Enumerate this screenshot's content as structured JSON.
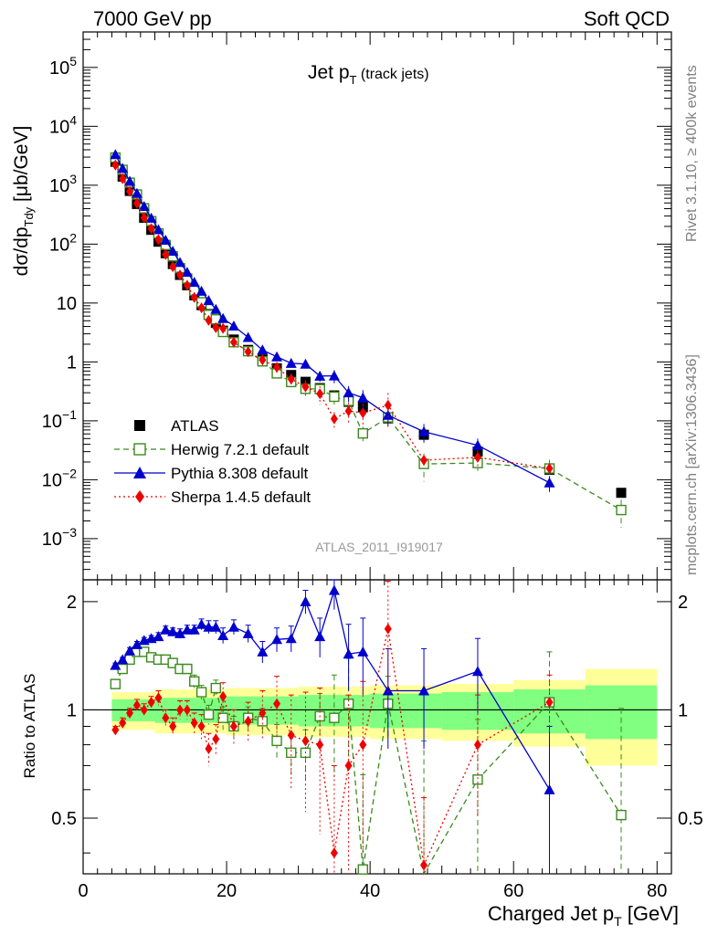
{
  "header": {
    "left": "7000 GeV pp",
    "right": "Soft QCD"
  },
  "title": {
    "main": "Jet p",
    "sub": "T",
    "extra": " (track jets)"
  },
  "side_labels": {
    "rivet": "Rivet 3.1.10, ≥ 400k events",
    "mcplots": "mcplots.cern.ch [arXiv:1306.3436]"
  },
  "watermark": "ATLAS_2011_I919017",
  "chart_data": {
    "type": "scatter",
    "title": "Jet pT (track jets)",
    "xlabel": "Charged Jet p_T [GeV]",
    "ylabel_main": "dσ/dp_Tdy [μb/GeV]",
    "ylabel_ratio": "Ratio to ATLAS",
    "xlim": [
      0,
      82
    ],
    "ylim_main": [
      0.0002,
      400000
    ],
    "ylim_ratio": [
      0.35,
      2.3
    ],
    "x_ticks": [
      0,
      20,
      40,
      60,
      80
    ],
    "main_y_ticks": [
      {
        "value": 0.001,
        "base": "10",
        "exp": "−3"
      },
      {
        "value": 0.01,
        "base": "10",
        "exp": "−2"
      },
      {
        "value": 0.1,
        "base": "10",
        "exp": "−1"
      },
      {
        "value": 1,
        "base": "1",
        "exp": ""
      },
      {
        "value": 10,
        "base": "10",
        "exp": ""
      },
      {
        "value": 100,
        "base": "10",
        "exp": "2"
      },
      {
        "value": 1000,
        "base": "10",
        "exp": "3"
      },
      {
        "value": 10000,
        "base": "10",
        "exp": "4"
      },
      {
        "value": 100000,
        "base": "10",
        "exp": "5"
      }
    ],
    "ratio_y_ticks": [
      {
        "value": 0.5,
        "label": "0.5"
      },
      {
        "value": 1,
        "label": "1"
      },
      {
        "value": 2,
        "label": "2"
      }
    ],
    "legend": [
      {
        "label": "ATLAS",
        "color": "#000000",
        "marker": "square",
        "line": "none"
      },
      {
        "label": "Herwig 7.2.1 default",
        "color": "#3a8a1c",
        "marker": "open-square",
        "line": "dashed"
      },
      {
        "label": "Pythia 8.308 default",
        "color": "#0000cc",
        "marker": "triangle",
        "line": "solid"
      },
      {
        "label": "Sherpa 1.4.5 default",
        "color": "#ee0000",
        "marker": "diamond",
        "line": "dotted"
      }
    ],
    "data": {
      "name": "ATLAS",
      "x": [
        4.5,
        5.5,
        6.5,
        7.5,
        8.5,
        9.5,
        10.5,
        11.5,
        12.5,
        13.5,
        14.5,
        15.5,
        16.5,
        17.5,
        18.5,
        19.5,
        21,
        23,
        25,
        27,
        29,
        31,
        33,
        35,
        37,
        39,
        42.5,
        47.5,
        55,
        65,
        75
      ],
      "y": [
        2500,
        1400,
        800,
        480,
        280,
        175,
        110,
        70,
        46,
        30,
        20,
        13.5,
        9.2,
        6.5,
        4.6,
        3.4,
        2.4,
        1.6,
        1.1,
        0.78,
        0.6,
        0.46,
        0.36,
        0.27,
        0.21,
        0.17,
        0.11,
        0.058,
        0.03,
        0.0148,
        0.006
      ],
      "band_inner": [
        [
          4,
          10,
          0.07
        ],
        [
          10,
          20,
          0.08
        ],
        [
          20,
          30,
          0.09
        ],
        [
          30,
          40,
          0.1
        ],
        [
          40,
          50,
          0.11
        ],
        [
          50,
          60,
          0.12
        ],
        [
          60,
          70,
          0.14
        ],
        [
          70,
          80,
          0.17
        ]
      ],
      "band_outer": [
        [
          4,
          10,
          0.12
        ],
        [
          10,
          20,
          0.14
        ],
        [
          20,
          30,
          0.15
        ],
        [
          30,
          40,
          0.16
        ],
        [
          40,
          50,
          0.17
        ],
        [
          50,
          60,
          0.18
        ],
        [
          60,
          70,
          0.21
        ],
        [
          70,
          80,
          0.3
        ]
      ]
    },
    "series": [
      {
        "name": "Herwig 7.2.1 default",
        "color": "#3a8a1c",
        "x": [
          4.5,
          5.5,
          6.5,
          7.5,
          8.5,
          9.5,
          10.5,
          11.5,
          12.5,
          13.5,
          14.5,
          15.5,
          16.5,
          17.5,
          18.5,
          19.5,
          21,
          23,
          25,
          27,
          29,
          31,
          33,
          35,
          37,
          39,
          42.5,
          47.5,
          55,
          65,
          75
        ],
        "ratio": [
          1.18,
          1.3,
          1.38,
          1.45,
          1.45,
          1.4,
          1.38,
          1.38,
          1.35,
          1.3,
          1.3,
          1.2,
          1.12,
          0.97,
          1.15,
          0.95,
          0.9,
          0.95,
          0.93,
          0.82,
          0.76,
          0.76,
          0.96,
          0.95,
          1.04,
          0.36,
          1.04,
          0.32,
          0.64,
          1.05,
          0.51
        ],
        "err": [
          0.02,
          0.02,
          0.02,
          0.03,
          0.03,
          0.03,
          0.03,
          0.03,
          0.04,
          0.04,
          0.04,
          0.05,
          0.05,
          0.06,
          0.06,
          0.07,
          0.06,
          0.07,
          0.08,
          0.09,
          0.1,
          0.12,
          0.15,
          0.3,
          0.35,
          0.3,
          0.2,
          0.5,
          0.3,
          0.4,
          0.5
        ]
      },
      {
        "name": "Pythia 8.308 default",
        "color": "#0000cc",
        "x": [
          4.5,
          5.5,
          6.5,
          7.5,
          8.5,
          9.5,
          10.5,
          11.5,
          12.5,
          13.5,
          14.5,
          15.5,
          16.5,
          17.5,
          18.5,
          19.5,
          21,
          23,
          25,
          27,
          29,
          31,
          33,
          35,
          37,
          39,
          42.5,
          47.5,
          55,
          65
        ],
        "ratio": [
          1.33,
          1.38,
          1.46,
          1.52,
          1.56,
          1.58,
          1.6,
          1.67,
          1.65,
          1.63,
          1.67,
          1.67,
          1.73,
          1.7,
          1.7,
          1.61,
          1.7,
          1.63,
          1.45,
          1.57,
          1.58,
          2.0,
          1.6,
          2.15,
          1.43,
          1.45,
          1.13,
          1.13,
          1.28,
          0.6
        ],
        "err": [
          0.02,
          0.02,
          0.03,
          0.03,
          0.03,
          0.03,
          0.04,
          0.04,
          0.04,
          0.05,
          0.05,
          0.05,
          0.06,
          0.07,
          0.07,
          0.08,
          0.08,
          0.09,
          0.1,
          0.12,
          0.13,
          0.15,
          0.2,
          0.25,
          0.3,
          0.35,
          0.35,
          0.35,
          0.3,
          0.3
        ]
      },
      {
        "name": "Sherpa 1.4.5 default",
        "color": "#ee0000",
        "x": [
          4.5,
          5.5,
          6.5,
          7.5,
          8.5,
          9.5,
          10.5,
          11.5,
          12.5,
          13.5,
          14.5,
          15.5,
          16.5,
          17.5,
          18.5,
          19.5,
          21,
          23,
          25,
          27,
          29,
          31,
          33,
          35,
          37,
          39,
          42.5,
          47.5,
          55,
          65
        ],
        "ratio": [
          0.88,
          0.92,
          0.98,
          1.03,
          1.0,
          1.05,
          1.08,
          0.95,
          0.9,
          1.0,
          1.0,
          0.92,
          0.9,
          0.78,
          0.83,
          1.09,
          0.9,
          0.93,
          0.98,
          1.04,
          0.85,
          0.82,
          0.8,
          0.4,
          0.7,
          0.8,
          1.68,
          0.37,
          0.8,
          1.05
        ],
        "err": [
          0.02,
          0.03,
          0.03,
          0.04,
          0.04,
          0.04,
          0.05,
          0.05,
          0.05,
          0.06,
          0.06,
          0.06,
          0.07,
          0.08,
          0.08,
          0.1,
          0.1,
          0.12,
          0.15,
          0.2,
          0.25,
          0.3,
          0.35,
          0.3,
          0.4,
          0.4,
          0.6,
          0.2,
          0.3,
          0.2
        ]
      }
    ]
  }
}
